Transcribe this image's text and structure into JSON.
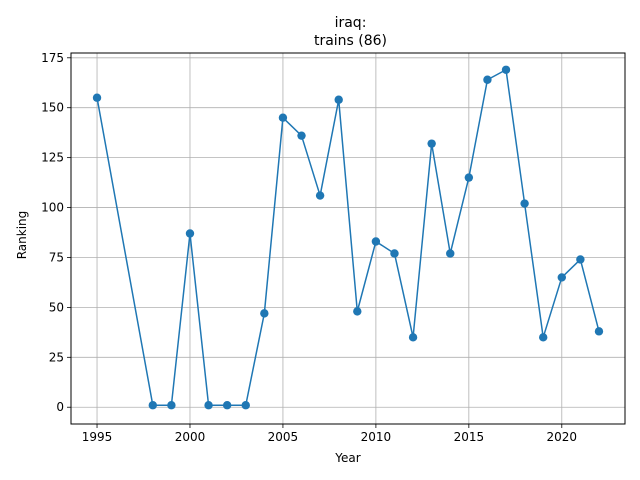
{
  "chart_data": {
    "type": "line",
    "title_line1": "iraq:",
    "title_line2": "trains (86)",
    "xlabel": "Year",
    "ylabel": "Ranking",
    "xlim": [
      1993.6,
      2023.4
    ],
    "ylim": [
      -8.4,
      177.4
    ],
    "xticks": [
      1995,
      2000,
      2005,
      2010,
      2015,
      2020
    ],
    "yticks": [
      0,
      25,
      50,
      75,
      100,
      125,
      150,
      175
    ],
    "grid": true,
    "series_color": "#1f77b4",
    "series": [
      {
        "x": [
          1995,
          1998,
          1999,
          2000,
          2001,
          2002,
          2003,
          2004,
          2005,
          2006,
          2007,
          2008,
          2009,
          2010,
          2011,
          2012,
          2013,
          2014,
          2015,
          2016,
          2017,
          2018,
          2019,
          2020,
          2021,
          2022
        ],
        "y": [
          155,
          1,
          1,
          87,
          1,
          1,
          1,
          47,
          145,
          136,
          106,
          154,
          48,
          83,
          77,
          35,
          132,
          77,
          115,
          164,
          169,
          102,
          35,
          65,
          74,
          38
        ]
      }
    ]
  }
}
